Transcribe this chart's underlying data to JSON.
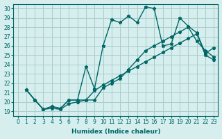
{
  "xlabel": "Humidex (Indice chaleur)",
  "ylabel": "",
  "bg_color": "#d6eeee",
  "grid_color": "#aacccc",
  "line_color": "#006666",
  "xlim": [
    -0.5,
    23.5
  ],
  "ylim": [
    18.5,
    30.5
  ],
  "yticks": [
    19,
    20,
    21,
    22,
    23,
    24,
    25,
    26,
    27,
    28,
    29,
    30
  ],
  "xticks": [
    0,
    1,
    2,
    3,
    4,
    5,
    6,
    7,
    8,
    9,
    10,
    11,
    12,
    13,
    14,
    15,
    16,
    17,
    18,
    19,
    20,
    21,
    22,
    23
  ],
  "line1_x": [
    1,
    2,
    3,
    4,
    5,
    6,
    7,
    8,
    9,
    10,
    11,
    12,
    13,
    14,
    15,
    16,
    17,
    18,
    19,
    20,
    21,
    22,
    23
  ],
  "line1_y": [
    21.3,
    20.2,
    19.2,
    19.5,
    19.3,
    20.2,
    20.2,
    23.8,
    21.4,
    26.0,
    28.8,
    28.5,
    29.2,
    28.5,
    30.2,
    30.0,
    26.0,
    26.2,
    29.0,
    28.1,
    27.4,
    25.2,
    25.8
  ],
  "line2_x": [
    1,
    2,
    3,
    4,
    5,
    6,
    7,
    8,
    9,
    10,
    11,
    12,
    13,
    14,
    15,
    16,
    17,
    18,
    19,
    20,
    21,
    22,
    23
  ],
  "line2_y": [
    21.3,
    20.2,
    19.2,
    19.5,
    19.3,
    20.2,
    20.2,
    20.2,
    20.2,
    21.5,
    22.0,
    22.5,
    23.5,
    24.5,
    25.5,
    26.0,
    26.5,
    27.0,
    27.5,
    28.0,
    26.5,
    25.5,
    24.8
  ],
  "line3_x": [
    1,
    2,
    3,
    4,
    5,
    6,
    7,
    8,
    9,
    10,
    11,
    12,
    13,
    14,
    15,
    16,
    17,
    18,
    19,
    20,
    21,
    22,
    23
  ],
  "line3_y": [
    21.3,
    20.2,
    19.2,
    19.3,
    19.2,
    19.8,
    20.0,
    20.2,
    21.2,
    21.8,
    22.3,
    22.8,
    23.3,
    23.8,
    24.3,
    24.8,
    25.3,
    25.8,
    26.3,
    26.8,
    27.3,
    25.0,
    24.5
  ]
}
